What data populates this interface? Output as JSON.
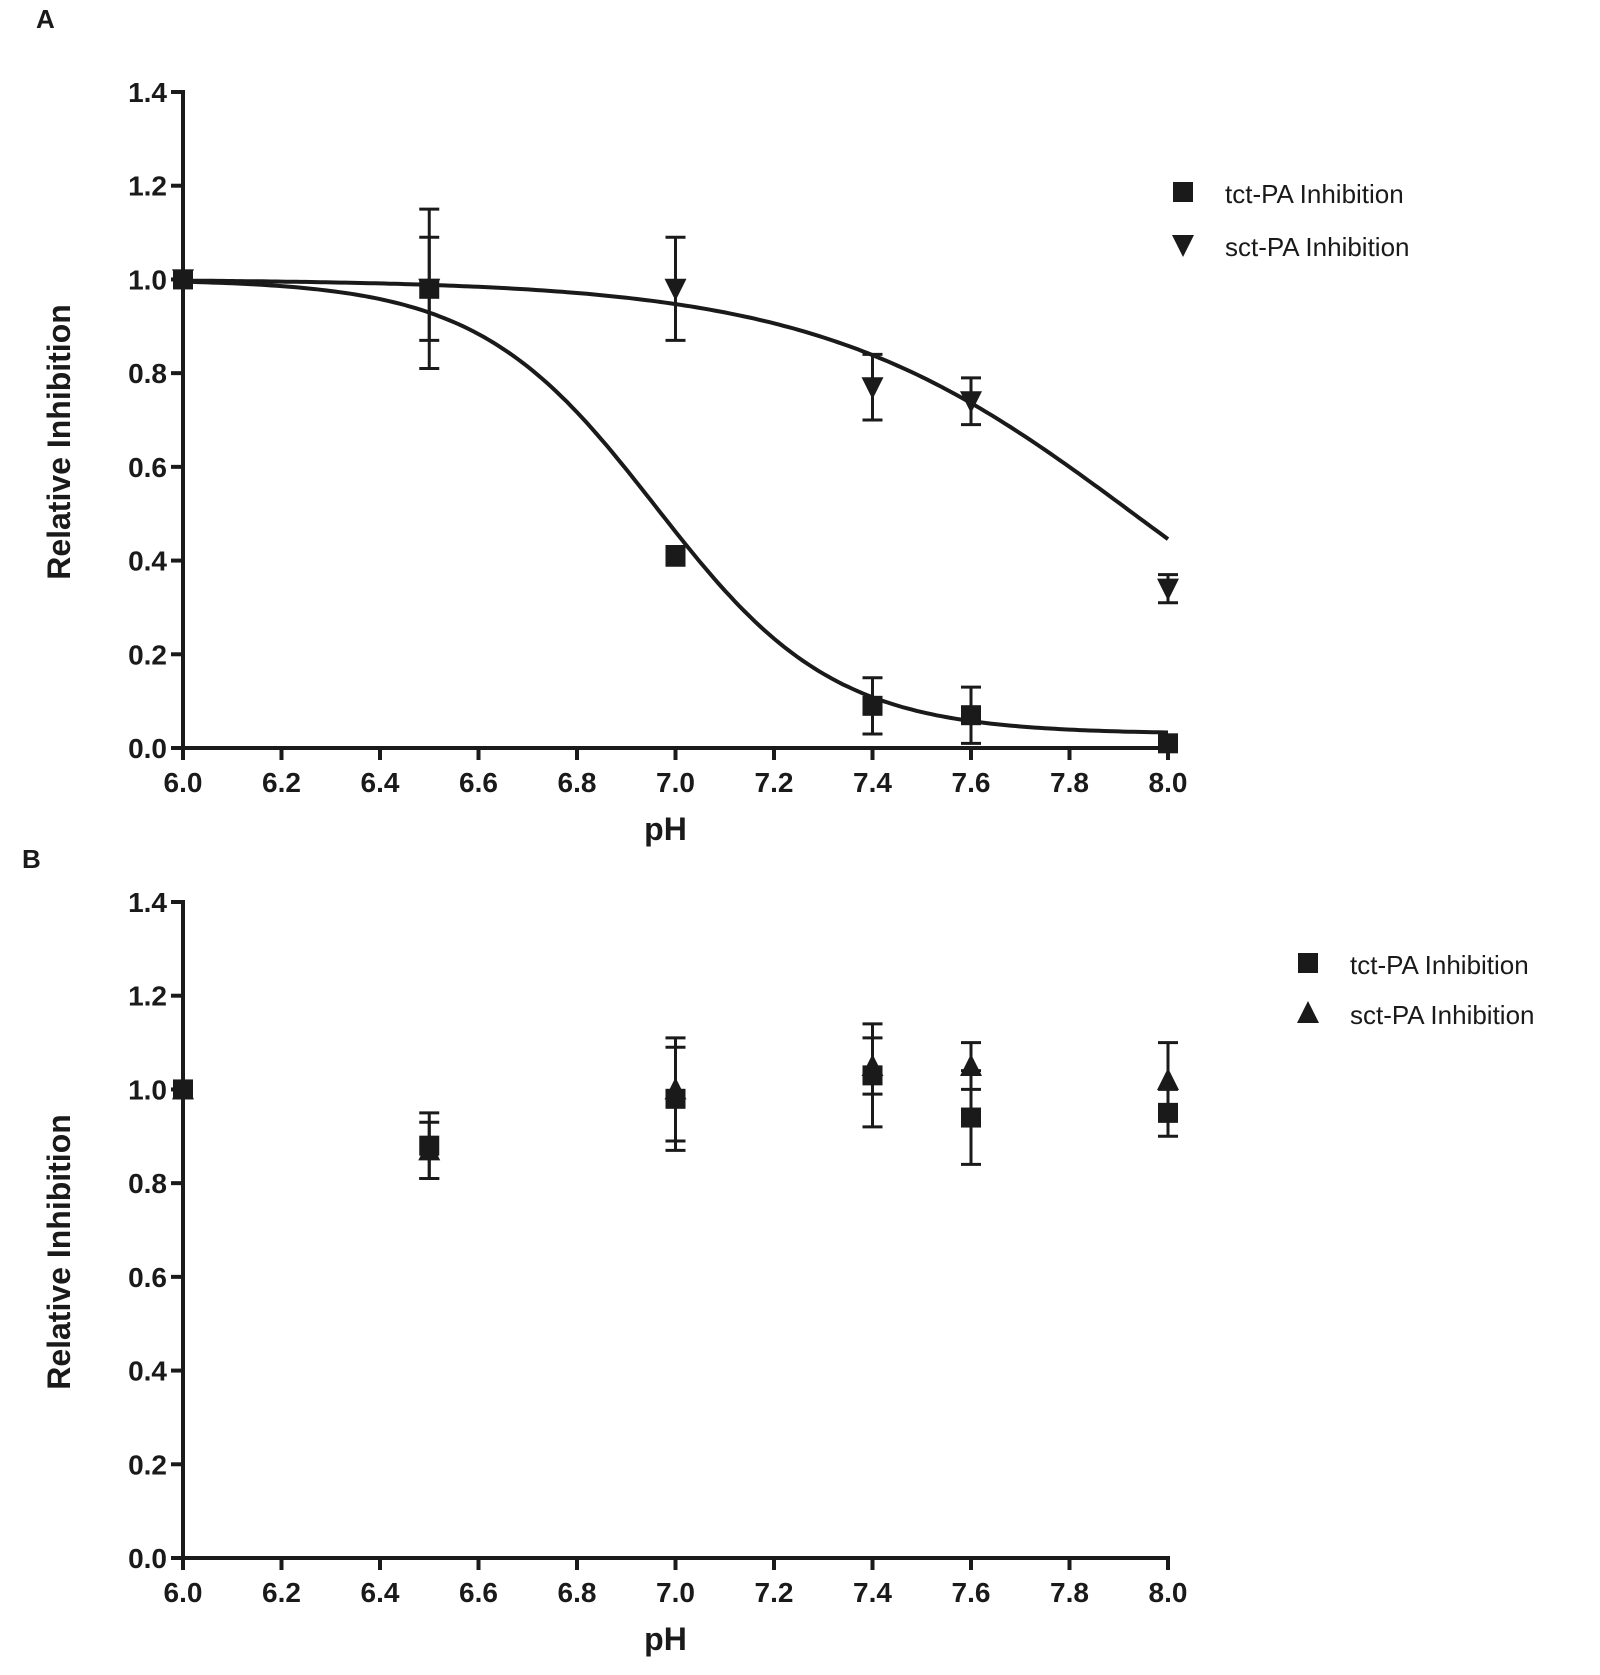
{
  "chart_data": [
    {
      "panel": "A",
      "type": "scatter",
      "xlabel": "pH",
      "ylabel": "Relative Inhibition",
      "xlim": [
        6.0,
        8.0
      ],
      "ylim": [
        0.0,
        1.4
      ],
      "x_ticks": [
        "6.0",
        "6.2",
        "6.4",
        "6.6",
        "6.8",
        "7.0",
        "7.2",
        "7.4",
        "7.6",
        "7.8",
        "8.0"
      ],
      "y_ticks": [
        "0.0",
        "0.2",
        "0.4",
        "0.6",
        "0.8",
        "1.0",
        "1.2",
        "1.4"
      ],
      "legend_position": "top-right",
      "fit_curves": true,
      "series": [
        {
          "name": "tct-PA Inhibition",
          "marker": "square",
          "points": [
            {
              "x": 6.0,
              "y": 1.0,
              "err": 0.0
            },
            {
              "x": 6.5,
              "y": 0.98,
              "err": 0.11
            },
            {
              "x": 7.0,
              "y": 0.41,
              "err": 0.02
            },
            {
              "x": 7.4,
              "y": 0.09,
              "err": 0.06
            },
            {
              "x": 7.6,
              "y": 0.07,
              "err": 0.06
            },
            {
              "x": 8.0,
              "y": 0.01,
              "err": 0.01
            }
          ]
        },
        {
          "name": "sct-PA Inhibition",
          "marker": "triangle-down",
          "points": [
            {
              "x": 6.0,
              "y": 1.0,
              "err": 0.0
            },
            {
              "x": 6.5,
              "y": 0.98,
              "err": 0.17
            },
            {
              "x": 7.0,
              "y": 0.98,
              "err": 0.11
            },
            {
              "x": 7.4,
              "y": 0.77,
              "err": 0.07
            },
            {
              "x": 7.6,
              "y": 0.74,
              "err": 0.05
            },
            {
              "x": 8.0,
              "y": 0.34,
              "err": 0.03
            }
          ]
        }
      ]
    },
    {
      "panel": "B",
      "type": "scatter",
      "xlabel": "pH",
      "ylabel": "Relative Inhibition",
      "xlim": [
        6.0,
        8.0
      ],
      "ylim": [
        0.0,
        1.4
      ],
      "x_ticks": [
        "6.0",
        "6.2",
        "6.4",
        "6.6",
        "6.8",
        "7.0",
        "7.2",
        "7.4",
        "7.6",
        "7.8",
        "8.0"
      ],
      "y_ticks": [
        "0.0",
        "0.2",
        "0.4",
        "0.6",
        "0.8",
        "1.0",
        "1.2",
        "1.4"
      ],
      "legend_position": "top-right",
      "fit_curves": false,
      "series": [
        {
          "name": "tct-PA Inhibition",
          "marker": "square",
          "points": [
            {
              "x": 6.0,
              "y": 1.0,
              "err": 0.0
            },
            {
              "x": 6.5,
              "y": 0.88,
              "err": 0.07
            },
            {
              "x": 7.0,
              "y": 0.98,
              "err": 0.11
            },
            {
              "x": 7.4,
              "y": 1.03,
              "err": 0.11
            },
            {
              "x": 7.6,
              "y": 0.94,
              "err": 0.1
            },
            {
              "x": 8.0,
              "y": 0.95,
              "err": 0.05
            }
          ]
        },
        {
          "name": "sct-PA Inhibition",
          "marker": "triangle-up",
          "points": [
            {
              "x": 6.0,
              "y": 1.0,
              "err": 0.0
            },
            {
              "x": 6.5,
              "y": 0.87,
              "err": 0.06
            },
            {
              "x": 7.0,
              "y": 1.0,
              "err": 0.11
            },
            {
              "x": 7.4,
              "y": 1.05,
              "err": 0.06
            },
            {
              "x": 7.6,
              "y": 1.05,
              "err": 0.05
            },
            {
              "x": 8.0,
              "y": 1.02,
              "err": 0.08
            }
          ]
        }
      ]
    }
  ]
}
